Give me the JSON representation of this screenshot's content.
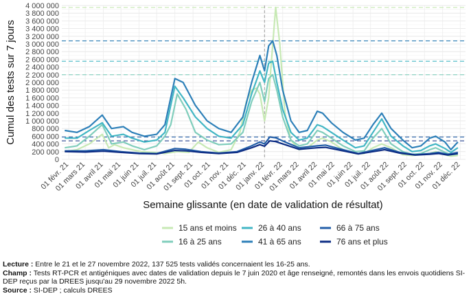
{
  "chart_data": {
    "type": "line",
    "ylabel": "Cumul des tests sur 7 jours",
    "xlabel": "Semaine glissante (en date de validation de résultat)",
    "ylim": [
      0,
      4000000
    ],
    "y_ticks": [
      0,
      200000,
      400000,
      600000,
      800000,
      1000000,
      1200000,
      1400000,
      1600000,
      1800000,
      2000000,
      2200000,
      2400000,
      2600000,
      2800000,
      3000000,
      3200000,
      3400000,
      3600000,
      3800000,
      4000000
    ],
    "y_tick_labels": [
      "0",
      "200 000",
      "400 000",
      "600 000",
      "800 000",
      "1 000 000",
      "1 200 000",
      "1 400 000",
      "1 600 000",
      "1 800 000",
      "2 000 000",
      "2 200 000",
      "2 400 000",
      "2 600 000",
      "2 800 000",
      "3 000 000",
      "3 200 000",
      "3 400 000",
      "3 600 000",
      "3 800 000",
      "4 000 000"
    ],
    "x_dates": [
      "2021-02-01",
      "2021-03-01",
      "2021-04-01",
      "2021-05-01",
      "2021-06-01",
      "2021-07-01",
      "2021-08-01",
      "2021-09-01",
      "2021-10-01",
      "2021-11-01",
      "2021-12-01",
      "2022-01-01",
      "2022-02-01",
      "2022-03-01",
      "2022-04-01",
      "2022-05-01",
      "2022-06-01",
      "2022-07-01",
      "2022-08-01",
      "2022-09-01",
      "2022-10-01",
      "2022-11-01",
      "2022-12-01"
    ],
    "x_tick_labels": [
      "01 févr. 21",
      "01 mars 21",
      "01 avril 21",
      "01 mai 21",
      "01 juin 21",
      "01 juil. 21",
      "01 août 21",
      "01 sept. 21",
      "01 oct. 21",
      "01 nov. 21",
      "01 déc. 21",
      "01 janv. 22",
      "01 févr. 22",
      "01 mars 22",
      "01 avril 22",
      "01 mai 22",
      "01 juin 22",
      "01 juil. 22",
      "01 août 22",
      "01 sept. 22",
      "01 oct. 22",
      "01 nov. 22",
      "01 déc. 22"
    ],
    "vline_date": "2022-01-01",
    "grid": true,
    "legend_position": "bottom",
    "series": [
      {
        "name": "15 ans et moins",
        "color": "#c7e9b4",
        "peak_ref": 3950000,
        "x": [
          "2021-01-25",
          "2021-02-15",
          "2021-03-08",
          "2021-03-30",
          "2021-04-10",
          "2021-04-20",
          "2021-05-05",
          "2021-05-20",
          "2021-06-05",
          "2021-06-25",
          "2021-07-15",
          "2021-08-05",
          "2021-08-25",
          "2021-09-10",
          "2021-09-25",
          "2021-10-15",
          "2021-11-05",
          "2021-11-20",
          "2021-12-01",
          "2021-12-10",
          "2021-12-18",
          "2021-12-24",
          "2022-01-01",
          "2022-01-08",
          "2022-01-14",
          "2022-01-20",
          "2022-01-27",
          "2022-02-05",
          "2022-02-15",
          "2022-03-01",
          "2022-03-15",
          "2022-04-01",
          "2022-04-10",
          "2022-04-25",
          "2022-05-15",
          "2022-06-05",
          "2022-06-20",
          "2022-07-05",
          "2022-07-20",
          "2022-08-05",
          "2022-08-25",
          "2022-09-10",
          "2022-09-25",
          "2022-10-10",
          "2022-10-20",
          "2022-11-05",
          "2022-11-15",
          "2022-11-27"
        ],
        "y": [
          200000,
          250000,
          400000,
          650000,
          300000,
          380000,
          300000,
          250000,
          200000,
          180000,
          150000,
          200000,
          180000,
          450000,
          300000,
          180000,
          250000,
          700000,
          1500000,
          1800000,
          1850000,
          1700000,
          1000000,
          1600000,
          2800000,
          3950000,
          3000000,
          1200000,
          500000,
          250000,
          300000,
          500000,
          550000,
          450000,
          250000,
          150000,
          150000,
          300000,
          400000,
          300000,
          120000,
          100000,
          120000,
          150000,
          200000,
          120000,
          80000,
          100000
        ]
      },
      {
        "name": "16 à 25 ans",
        "color": "#7fcdbb",
        "peak_ref": 2200000,
        "x": [
          "2021-01-25",
          "2021-02-15",
          "2021-03-08",
          "2021-03-30",
          "2021-04-15",
          "2021-05-05",
          "2021-05-20",
          "2021-06-10",
          "2021-07-01",
          "2021-07-15",
          "2021-07-25",
          "2021-08-05",
          "2021-08-20",
          "2021-09-05",
          "2021-09-25",
          "2021-10-15",
          "2021-11-05",
          "2021-11-25",
          "2021-12-10",
          "2021-12-24",
          "2022-01-01",
          "2022-01-08",
          "2022-01-15",
          "2022-01-22",
          "2022-02-01",
          "2022-02-15",
          "2022-03-01",
          "2022-03-15",
          "2022-04-01",
          "2022-04-10",
          "2022-04-25",
          "2022-05-15",
          "2022-06-05",
          "2022-06-20",
          "2022-07-05",
          "2022-07-20",
          "2022-08-05",
          "2022-08-25",
          "2022-09-10",
          "2022-09-25",
          "2022-10-10",
          "2022-10-20",
          "2022-11-05",
          "2022-11-15",
          "2022-11-27"
        ],
        "y": [
          300000,
          350000,
          600000,
          900000,
          400000,
          450000,
          350000,
          250000,
          350000,
          600000,
          900000,
          1700000,
          1300000,
          700000,
          500000,
          380000,
          400000,
          700000,
          1500000,
          2000000,
          1500000,
          2100000,
          2200000,
          1800000,
          1100000,
          500000,
          350000,
          400000,
          750000,
          700000,
          550000,
          350000,
          200000,
          220000,
          550000,
          800000,
          400000,
          200000,
          130000,
          150000,
          250000,
          300000,
          180000,
          120000,
          137525
        ]
      },
      {
        "name": "26 à 40 ans",
        "color": "#41b6c4",
        "peak_ref": 2550000,
        "x": [
          "2021-01-25",
          "2021-02-15",
          "2021-03-08",
          "2021-03-30",
          "2021-04-15",
          "2021-05-05",
          "2021-05-20",
          "2021-06-10",
          "2021-07-01",
          "2021-07-15",
          "2021-08-01",
          "2021-08-15",
          "2021-09-05",
          "2021-09-25",
          "2021-10-15",
          "2021-11-05",
          "2021-11-25",
          "2021-12-10",
          "2021-12-24",
          "2022-01-01",
          "2022-01-08",
          "2022-01-15",
          "2022-01-22",
          "2022-02-01",
          "2022-02-15",
          "2022-03-01",
          "2022-03-15",
          "2022-04-01",
          "2022-04-10",
          "2022-04-25",
          "2022-05-15",
          "2022-06-05",
          "2022-06-20",
          "2022-07-05",
          "2022-07-20",
          "2022-08-05",
          "2022-08-25",
          "2022-09-10",
          "2022-09-25",
          "2022-10-10",
          "2022-10-20",
          "2022-11-05",
          "2022-11-15",
          "2022-11-27"
        ],
        "y": [
          550000,
          550000,
          750000,
          950000,
          600000,
          650000,
          550000,
          450000,
          500000,
          700000,
          1900000,
          1600000,
          1100000,
          800000,
          600000,
          550000,
          900000,
          1700000,
          2300000,
          2000000,
          2500000,
          2550000,
          2000000,
          1300000,
          700000,
          500000,
          550000,
          900000,
          850000,
          700000,
          500000,
          300000,
          350000,
          700000,
          1050000,
          600000,
          350000,
          200000,
          230000,
          350000,
          400000,
          280000,
          180000,
          300000
        ]
      },
      {
        "name": "41 à 65 ans",
        "color": "#2c7fb8",
        "peak_ref": 3080000,
        "x": [
          "2021-01-25",
          "2021-02-15",
          "2021-03-08",
          "2021-03-30",
          "2021-04-15",
          "2021-05-05",
          "2021-05-20",
          "2021-06-10",
          "2021-07-01",
          "2021-07-15",
          "2021-08-01",
          "2021-08-15",
          "2021-09-05",
          "2021-09-25",
          "2021-10-15",
          "2021-11-05",
          "2021-11-25",
          "2021-12-10",
          "2021-12-24",
          "2022-01-01",
          "2022-01-08",
          "2022-01-15",
          "2022-01-22",
          "2022-02-01",
          "2022-02-15",
          "2022-03-01",
          "2022-03-15",
          "2022-04-01",
          "2022-04-10",
          "2022-04-25",
          "2022-05-15",
          "2022-06-05",
          "2022-06-20",
          "2022-07-05",
          "2022-07-20",
          "2022-08-05",
          "2022-08-25",
          "2022-09-10",
          "2022-09-25",
          "2022-10-10",
          "2022-10-20",
          "2022-11-05",
          "2022-11-15",
          "2022-11-27"
        ],
        "y": [
          750000,
          700000,
          850000,
          1150000,
          800000,
          850000,
          700000,
          600000,
          650000,
          900000,
          2100000,
          2000000,
          1400000,
          1000000,
          800000,
          700000,
          1100000,
          2000000,
          2700000,
          2300000,
          2950000,
          3080000,
          2700000,
          1800000,
          1000000,
          700000,
          750000,
          1250000,
          1200000,
          950000,
          700000,
          500000,
          550000,
          900000,
          1200000,
          800000,
          500000,
          300000,
          350000,
          550000,
          600000,
          450000,
          250000,
          450000
        ]
      },
      {
        "name": "66 à 75 ans",
        "color": "#225ea8",
        "peak_ref": 580000,
        "x": [
          "2021-01-25",
          "2021-03-01",
          "2021-04-01",
          "2021-05-01",
          "2021-06-01",
          "2021-07-01",
          "2021-08-01",
          "2021-08-20",
          "2021-09-15",
          "2021-10-15",
          "2021-11-15",
          "2021-12-10",
          "2021-12-24",
          "2022-01-01",
          "2022-01-10",
          "2022-01-20",
          "2022-02-05",
          "2022-03-01",
          "2022-04-01",
          "2022-04-15",
          "2022-05-15",
          "2022-06-10",
          "2022-07-10",
          "2022-07-25",
          "2022-08-20",
          "2022-09-15",
          "2022-10-10",
          "2022-10-25",
          "2022-11-10",
          "2022-11-27"
        ],
        "y": [
          220000,
          220000,
          250000,
          200000,
          160000,
          150000,
          280000,
          260000,
          200000,
          160000,
          200000,
          350000,
          450000,
          400000,
          580000,
          560000,
          450000,
          300000,
          350000,
          370000,
          250000,
          150000,
          250000,
          300000,
          180000,
          120000,
          150000,
          180000,
          130000,
          180000
        ]
      },
      {
        "name": "76 ans et plus",
        "color": "#0c2c84",
        "peak_ref": 480000,
        "x": [
          "2021-01-25",
          "2021-03-01",
          "2021-04-01",
          "2021-05-01",
          "2021-06-01",
          "2021-07-01",
          "2021-08-01",
          "2021-08-20",
          "2021-09-15",
          "2021-10-15",
          "2021-11-15",
          "2021-12-10",
          "2021-12-24",
          "2022-01-01",
          "2022-01-10",
          "2022-01-20",
          "2022-02-05",
          "2022-03-01",
          "2022-04-01",
          "2022-04-15",
          "2022-05-15",
          "2022-06-10",
          "2022-07-10",
          "2022-07-25",
          "2022-08-20",
          "2022-09-15",
          "2022-10-10",
          "2022-10-25",
          "2022-11-10",
          "2022-11-27"
        ],
        "y": [
          200000,
          190000,
          210000,
          180000,
          150000,
          140000,
          230000,
          220000,
          180000,
          150000,
          180000,
          300000,
          380000,
          340000,
          480000,
          460000,
          380000,
          260000,
          300000,
          310000,
          220000,
          140000,
          210000,
          250000,
          160000,
          110000,
          130000,
          150000,
          110000,
          150000
        ]
      }
    ]
  },
  "notes": {
    "lecture_label": "Lecture :",
    "lecture_text": " Entre le 21 et le 27 novembre 2022, 137 525 tests validés concernaient les 16-25 ans.",
    "champ_label": "Champ :",
    "champ_text": " Tests RT-PCR et antigéniques avec dates de validation depuis le 7 juin 2020 et âge renseigné, remontés dans les envois quotidiens SI-DEP reçus par la DREES jusqu'au 29 novembre 2022 5h.",
    "source_label": "Source :",
    "source_text": " SI-DEP ; calculs DREES"
  }
}
